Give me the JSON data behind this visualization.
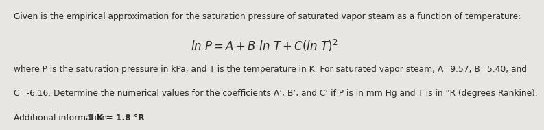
{
  "background_color": "#e8e6e2",
  "line1": "Given is the empirical approximation for the saturation pressure of saturated vapor steam as a function of temperature:",
  "line3a": "where P is the saturation pressure in kPa, and T is the temperature in K. For saturated vapor steam, A=9.57, B=5.40, and",
  "line3b": "C=-6.16. Determine the numerical values for the coefficients A’, B’, and C’ if P is in mm Hg and T is in °R (degrees Rankine).",
  "line4_normal": "Additional information: ",
  "line4_bold": "1 K = 1.8 °R",
  "text_color": "#2a2a2a",
  "font_size_body": 8.8,
  "font_size_eq": 12.0
}
